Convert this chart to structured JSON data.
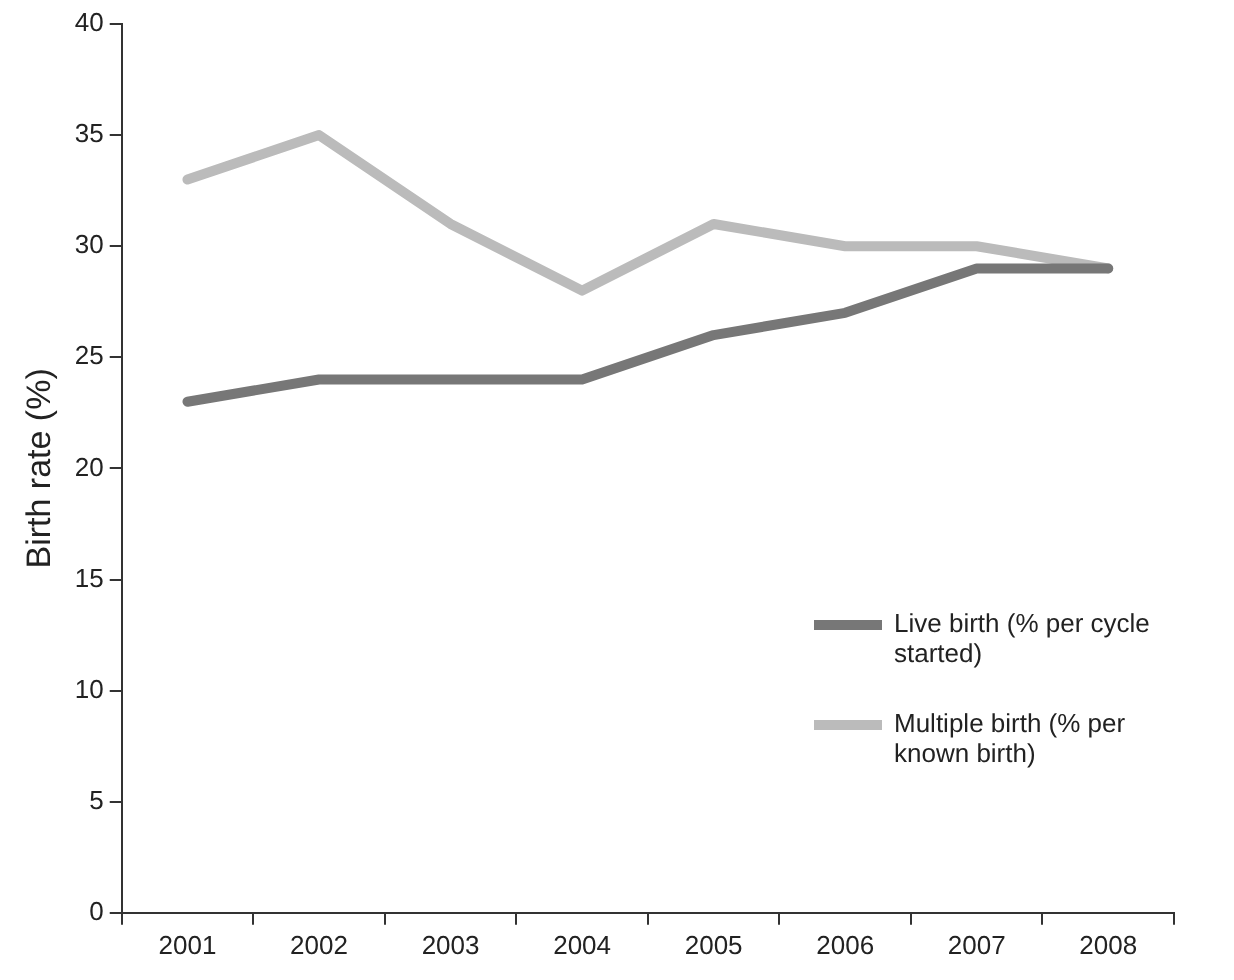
{
  "chart_data": {
    "type": "line",
    "ylabel": "Birth rate (%)",
    "categories": [
      "2001",
      "2002",
      "2003",
      "2004",
      "2005",
      "2006",
      "2007",
      "2008"
    ],
    "series": [
      {
        "name": "Live birth (% per cycle started)",
        "color": "#777777",
        "values": [
          23,
          24,
          24,
          24,
          26,
          27,
          29,
          29
        ]
      },
      {
        "name": "Multiple birth (% per known birth)",
        "color": "#bbbbbb",
        "values": [
          33,
          35,
          31,
          28,
          31,
          30,
          30,
          29
        ]
      }
    ],
    "ylim": [
      0,
      40
    ],
    "yticks": [
      0,
      5,
      10,
      15,
      20,
      25,
      30,
      35,
      40
    ],
    "grid": false,
    "legend": "right",
    "marker": "none",
    "line_style": "solid"
  }
}
